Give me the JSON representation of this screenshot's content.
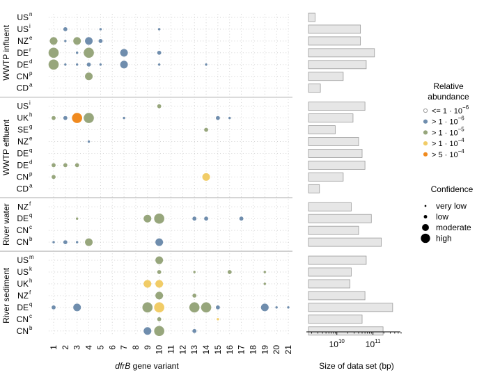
{
  "chart_data": [
    {
      "type": "scatter",
      "title": "",
      "xlabel_italic": "dfrB",
      "xlabel_rest": " gene variant",
      "x_ticks": [
        "1",
        "2",
        "3",
        "4",
        "5",
        "6",
        "7",
        "8",
        "9",
        "10",
        "11",
        "12",
        "13",
        "14",
        "15",
        "16",
        "17",
        "18",
        "19",
        "20",
        "21"
      ],
      "groups": [
        {
          "name": "WWTP influent",
          "rows": [
            {
              "label": "US",
              "sup": "n"
            },
            {
              "label": "US",
              "sup": "i"
            },
            {
              "label": "NZ",
              "sup": "e"
            },
            {
              "label": "DE",
              "sup": "r"
            },
            {
              "label": "DE",
              "sup": "d"
            },
            {
              "label": "CN",
              "sup": "p"
            },
            {
              "label": "CD",
              "sup": "a"
            }
          ]
        },
        {
          "name": "WWTP effluent",
          "rows": [
            {
              "label": "US",
              "sup": "i"
            },
            {
              "label": "UK",
              "sup": "h"
            },
            {
              "label": "SE",
              "sup": "g"
            },
            {
              "label": "NZ",
              "sup": "e"
            },
            {
              "label": "DE",
              "sup": "q"
            },
            {
              "label": "DE",
              "sup": "d"
            },
            {
              "label": "CN",
              "sup": "p"
            },
            {
              "label": "CD",
              "sup": "a"
            }
          ]
        },
        {
          "name": "River water",
          "rows": [
            {
              "label": "NZ",
              "sup": "f"
            },
            {
              "label": "DE",
              "sup": "q"
            },
            {
              "label": "CN",
              "sup": "c"
            },
            {
              "label": "CN",
              "sup": "b"
            }
          ]
        },
        {
          "name": "River sediment",
          "rows": [
            {
              "label": "US",
              "sup": "m"
            },
            {
              "label": "US",
              "sup": "k"
            },
            {
              "label": "UK",
              "sup": "h"
            },
            {
              "label": "NZ",
              "sup": "f"
            },
            {
              "label": "DE",
              "sup": "q"
            },
            {
              "label": "CN",
              "sup": "c"
            },
            {
              "label": "CN",
              "sup": "b"
            }
          ]
        }
      ],
      "abundance_colors": [
        "#ffffff",
        "#6f8dad",
        "#97a67c",
        "#f1cc67",
        "#f08a1f"
      ],
      "abundance_strokes": [
        "#9a9a9a",
        "#6f8dad",
        "#97a67c",
        "#f1cc67",
        "#f08a1f"
      ],
      "points": [
        {
          "row": 1,
          "x": 2,
          "abundance": 1,
          "confidence": 1
        },
        {
          "row": 1,
          "x": 5,
          "abundance": 1,
          "confidence": 0
        },
        {
          "row": 1,
          "x": 10,
          "abundance": 1,
          "confidence": 0
        },
        {
          "row": 2,
          "x": 1,
          "abundance": 2,
          "confidence": 2
        },
        {
          "row": 2,
          "x": 2,
          "abundance": 1,
          "confidence": 0
        },
        {
          "row": 2,
          "x": 3,
          "abundance": 2,
          "confidence": 2
        },
        {
          "row": 2,
          "x": 4,
          "abundance": 1,
          "confidence": 2
        },
        {
          "row": 2,
          "x": 5,
          "abundance": 1,
          "confidence": 1
        },
        {
          "row": 3,
          "x": 1,
          "abundance": 2,
          "confidence": 3
        },
        {
          "row": 3,
          "x": 3,
          "abundance": 1,
          "confidence": 0
        },
        {
          "row": 3,
          "x": 4,
          "abundance": 2,
          "confidence": 3
        },
        {
          "row": 3,
          "x": 7,
          "abundance": 1,
          "confidence": 2
        },
        {
          "row": 3,
          "x": 10,
          "abundance": 1,
          "confidence": 1
        },
        {
          "row": 4,
          "x": 1,
          "abundance": 2,
          "confidence": 3
        },
        {
          "row": 4,
          "x": 2,
          "abundance": 1,
          "confidence": 0
        },
        {
          "row": 4,
          "x": 3,
          "abundance": 1,
          "confidence": 0
        },
        {
          "row": 4,
          "x": 4,
          "abundance": 1,
          "confidence": 1
        },
        {
          "row": 4,
          "x": 5,
          "abundance": 1,
          "confidence": 0
        },
        {
          "row": 4,
          "x": 7,
          "abundance": 1,
          "confidence": 2
        },
        {
          "row": 4,
          "x": 10,
          "abundance": 1,
          "confidence": 0
        },
        {
          "row": 4,
          "x": 14,
          "abundance": 1,
          "confidence": 0
        },
        {
          "row": 5,
          "x": 4,
          "abundance": 2,
          "confidence": 2
        },
        {
          "row": 7,
          "x": 10,
          "abundance": 2,
          "confidence": 1
        },
        {
          "row": 8,
          "x": 1,
          "abundance": 2,
          "confidence": 1
        },
        {
          "row": 8,
          "x": 2,
          "abundance": 1,
          "confidence": 1
        },
        {
          "row": 8,
          "x": 3,
          "abundance": 4,
          "confidence": 3
        },
        {
          "row": 8,
          "x": 4,
          "abundance": 2,
          "confidence": 3
        },
        {
          "row": 8,
          "x": 7,
          "abundance": 1,
          "confidence": 0
        },
        {
          "row": 8,
          "x": 15,
          "abundance": 1,
          "confidence": 1
        },
        {
          "row": 8,
          "x": 16,
          "abundance": 1,
          "confidence": 0
        },
        {
          "row": 9,
          "x": 14,
          "abundance": 2,
          "confidence": 1
        },
        {
          "row": 10,
          "x": 4,
          "abundance": 1,
          "confidence": 0
        },
        {
          "row": 12,
          "x": 1,
          "abundance": 2,
          "confidence": 1
        },
        {
          "row": 12,
          "x": 2,
          "abundance": 2,
          "confidence": 1
        },
        {
          "row": 12,
          "x": 3,
          "abundance": 2,
          "confidence": 1
        },
        {
          "row": 13,
          "x": 1,
          "abundance": 2,
          "confidence": 1
        },
        {
          "row": 13,
          "x": 14,
          "abundance": 3,
          "confidence": 2
        },
        {
          "row": 16,
          "x": 3,
          "abundance": 2,
          "confidence": 0
        },
        {
          "row": 16,
          "x": 9,
          "abundance": 2,
          "confidence": 2
        },
        {
          "row": 16,
          "x": 10,
          "abundance": 2,
          "confidence": 3
        },
        {
          "row": 16,
          "x": 13,
          "abundance": 1,
          "confidence": 1
        },
        {
          "row": 16,
          "x": 14,
          "abundance": 1,
          "confidence": 1
        },
        {
          "row": 16,
          "x": 17,
          "abundance": 1,
          "confidence": 1
        },
        {
          "row": 18,
          "x": 1,
          "abundance": 1,
          "confidence": 0
        },
        {
          "row": 18,
          "x": 2,
          "abundance": 1,
          "confidence": 1
        },
        {
          "row": 18,
          "x": 3,
          "abundance": 1,
          "confidence": 0
        },
        {
          "row": 18,
          "x": 4,
          "abundance": 2,
          "confidence": 2
        },
        {
          "row": 18,
          "x": 10,
          "abundance": 1,
          "confidence": 2
        },
        {
          "row": 19,
          "x": 10,
          "abundance": 2,
          "confidence": 2
        },
        {
          "row": 20,
          "x": 10,
          "abundance": 2,
          "confidence": 1
        },
        {
          "row": 20,
          "x": 13,
          "abundance": 2,
          "confidence": 0
        },
        {
          "row": 20,
          "x": 16,
          "abundance": 2,
          "confidence": 1
        },
        {
          "row": 20,
          "x": 19,
          "abundance": 2,
          "confidence": 0
        },
        {
          "row": 21,
          "x": 9,
          "abundance": 3,
          "confidence": 2
        },
        {
          "row": 21,
          "x": 10,
          "abundance": 3,
          "confidence": 2
        },
        {
          "row": 21,
          "x": 19,
          "abundance": 2,
          "confidence": 0
        },
        {
          "row": 22,
          "x": 10,
          "abundance": 2,
          "confidence": 2
        },
        {
          "row": 22,
          "x": 13,
          "abundance": 2,
          "confidence": 1
        },
        {
          "row": 23,
          "x": 1,
          "abundance": 1,
          "confidence": 1
        },
        {
          "row": 23,
          "x": 3,
          "abundance": 1,
          "confidence": 2
        },
        {
          "row": 23,
          "x": 9,
          "abundance": 2,
          "confidence": 3
        },
        {
          "row": 23,
          "x": 10,
          "abundance": 3,
          "confidence": 3
        },
        {
          "row": 23,
          "x": 13,
          "abundance": 2,
          "confidence": 3
        },
        {
          "row": 23,
          "x": 14,
          "abundance": 2,
          "confidence": 3
        },
        {
          "row": 23,
          "x": 15,
          "abundance": 1,
          "confidence": 1
        },
        {
          "row": 23,
          "x": 19,
          "abundance": 1,
          "confidence": 2
        },
        {
          "row": 23,
          "x": 20,
          "abundance": 1,
          "confidence": 0
        },
        {
          "row": 23,
          "x": 21,
          "abundance": 1,
          "confidence": 0
        },
        {
          "row": 24,
          "x": 10,
          "abundance": 2,
          "confidence": 1
        },
        {
          "row": 24,
          "x": 15,
          "abundance": 3,
          "confidence": 0
        },
        {
          "row": 25,
          "x": 9,
          "abundance": 1,
          "confidence": 2
        },
        {
          "row": 25,
          "x": 10,
          "abundance": 2,
          "confidence": 3
        },
        {
          "row": 25,
          "x": 13,
          "abundance": 1,
          "confidence": 1
        }
      ]
    },
    {
      "type": "bar",
      "orientation": "horizontal",
      "xscale": "log",
      "xlabel": "Size of data set (bp)",
      "xticks": [
        {
          "base": "10",
          "exp": "10",
          "value": 10000000000
        },
        {
          "base": "10",
          "exp": "11",
          "value": 100000000000
        }
      ],
      "xlim": [
        1500000000,
        600000000000
      ],
      "values": [
        2500000000,
        45000000000,
        45000000000,
        110000000000,
        65000000000,
        15000000000,
        3500000000,
        60000000000,
        28000000000,
        9000000000,
        40000000000,
        50000000000,
        60000000000,
        15000000000,
        3300000000,
        25000000000,
        90000000000,
        40000000000,
        170000000000,
        65000000000,
        25000000000,
        23000000000,
        60000000000,
        350000000000,
        50000000000,
        190000000000
      ]
    }
  ],
  "legend": {
    "abundance_title_1": "Relative",
    "abundance_title_2": "abundance",
    "abundance_items": [
      {
        "prefix": "<= 1 · 10",
        "exp": "−6"
      },
      {
        "prefix": "> 1 · 10",
        "exp": "−6"
      },
      {
        "prefix": "> 1 · 10",
        "exp": "−5"
      },
      {
        "prefix": "> 1 · 10",
        "exp": "−4"
      },
      {
        "prefix": "> 5 · 10",
        "exp": "−4"
      }
    ],
    "confidence_title": "Confidence",
    "confidence_items": [
      "very low",
      "low",
      "moderate",
      "high"
    ]
  }
}
